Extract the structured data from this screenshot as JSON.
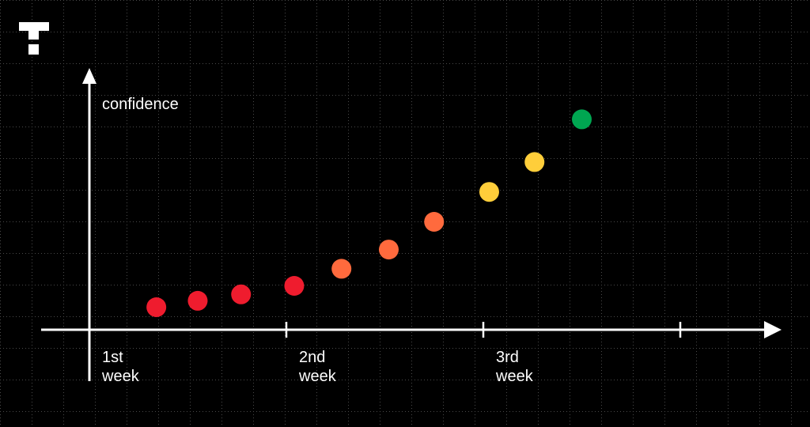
{
  "chart_data": {
    "type": "scatter",
    "title": "",
    "xlabel": "",
    "ylabel": "confidence",
    "x_tick_labels": [
      {
        "x": 0,
        "line1": "1st",
        "line2": "week"
      },
      {
        "x": 1,
        "line1": "2nd",
        "line2": "week"
      },
      {
        "x": 2,
        "line1": "3rd",
        "line2": "week"
      }
    ],
    "xlim": [
      0,
      3.5
    ],
    "ylim": [
      0,
      1
    ],
    "grid": true,
    "legend": "none",
    "points": [
      {
        "x": 0.34,
        "y": 0.05,
        "color": "#ef1c2e"
      },
      {
        "x": 0.55,
        "y": 0.08,
        "color": "#ef1c2e"
      },
      {
        "x": 0.77,
        "y": 0.11,
        "color": "#ef1c2e"
      },
      {
        "x": 1.04,
        "y": 0.15,
        "color": "#ef1c2e"
      },
      {
        "x": 1.28,
        "y": 0.23,
        "color": "#ff6a3d"
      },
      {
        "x": 1.52,
        "y": 0.32,
        "color": "#ff6a3d"
      },
      {
        "x": 1.75,
        "y": 0.45,
        "color": "#ff6a3d"
      },
      {
        "x": 2.03,
        "y": 0.59,
        "color": "#ffce3a"
      },
      {
        "x": 2.26,
        "y": 0.73,
        "color": "#ffce3a"
      },
      {
        "x": 2.5,
        "y": 0.93,
        "color": "#00a651"
      }
    ]
  },
  "colors": {
    "background": "#000000",
    "axis": "#ffffff",
    "grid_dots": "#4a4a4a"
  },
  "logo": {
    "icon": "t-logo-icon"
  }
}
